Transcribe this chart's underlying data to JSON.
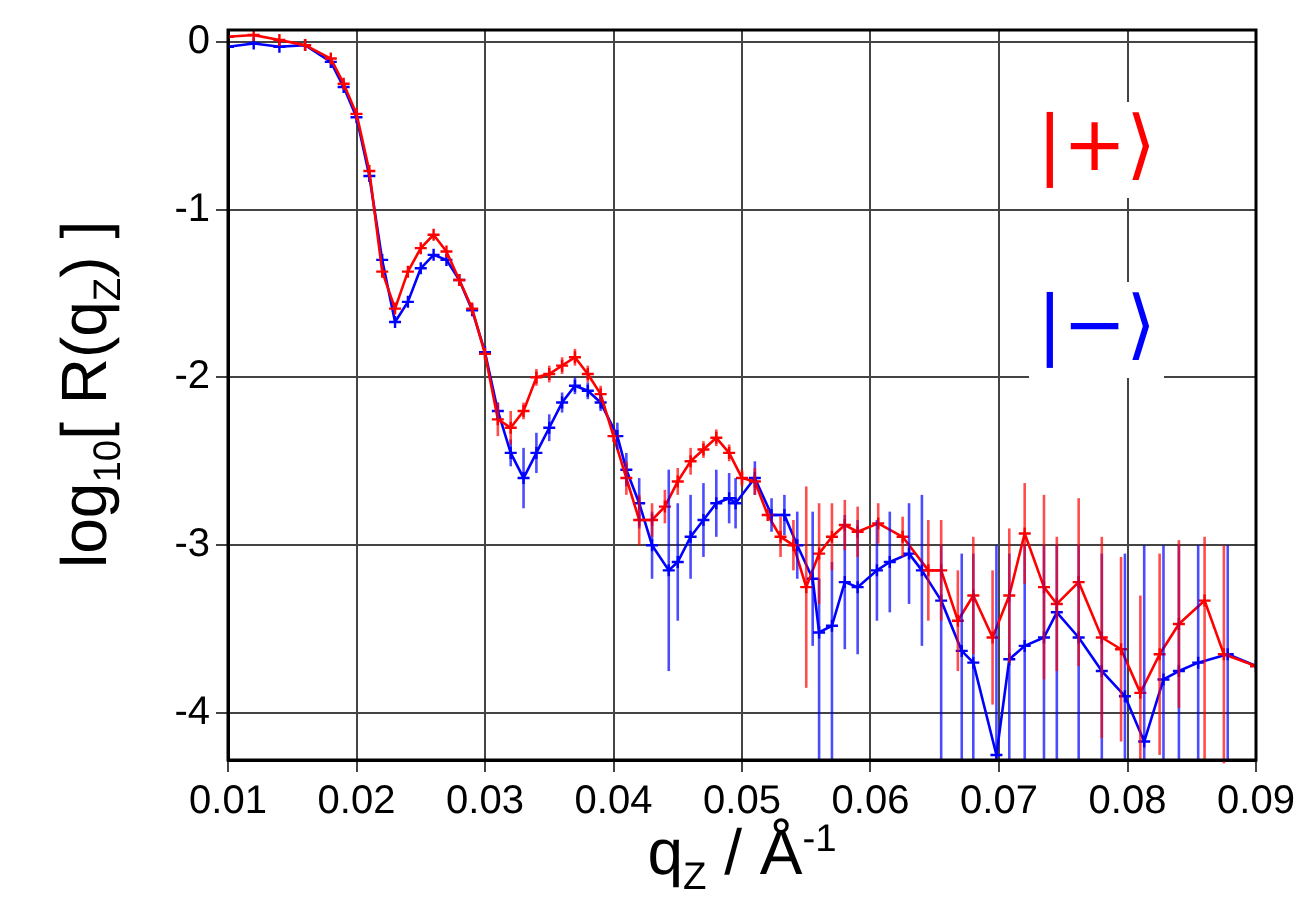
{
  "chart_data": {
    "type": "line",
    "xlabel": "q$_{Z}$ / Å$^{-1}$",
    "ylabel": "log$_{10}$[ R(q$_{Z}$) ]",
    "xlim": [
      0.01,
      0.09
    ],
    "xticks": [
      0.01,
      0.02,
      0.03,
      0.04,
      0.05,
      0.06,
      0.07,
      0.08,
      0.09
    ],
    "ylim": [
      -4.28,
      0.07
    ],
    "yticks": [
      0,
      -1,
      -2,
      -3,
      -4
    ],
    "grid": true,
    "legend": "top right",
    "marker": "cross",
    "line_style": "solid",
    "series": [
      {
        "name": "|+⟩",
        "color": "#ff0000",
        "x": [
          0.01,
          0.012,
          0.014,
          0.016,
          0.018,
          0.019,
          0.02,
          0.021,
          0.022,
          0.023,
          0.024,
          0.025,
          0.026,
          0.027,
          0.028,
          0.029,
          0.03,
          0.031,
          0.032,
          0.033,
          0.034,
          0.035,
          0.036,
          0.037,
          0.038,
          0.039,
          0.04,
          0.041,
          0.042,
          0.043,
          0.044,
          0.045,
          0.046,
          0.047,
          0.048,
          0.049,
          0.05,
          0.051,
          0.052,
          0.053,
          0.054,
          0.055,
          0.056,
          0.057,
          0.058,
          0.059,
          0.0606,
          0.0625,
          0.0645,
          0.0655,
          0.0668,
          0.068,
          0.0695,
          0.0708,
          0.072,
          0.0735,
          0.0745,
          0.0762,
          0.078,
          0.0795,
          0.081,
          0.0825,
          0.084,
          0.086,
          0.0875,
          0.09
        ],
        "values": [
          0.03,
          0.04,
          0.01,
          -0.02,
          -0.1,
          -0.25,
          -0.43,
          -0.77,
          -1.37,
          -1.59,
          -1.37,
          -1.23,
          -1.15,
          -1.25,
          -1.42,
          -1.59,
          -1.86,
          -2.25,
          -2.3,
          -2.2,
          -2.0,
          -1.98,
          -1.93,
          -1.88,
          -1.98,
          -2.1,
          -2.35,
          -2.6,
          -2.85,
          -2.85,
          -2.77,
          -2.62,
          -2.5,
          -2.43,
          -2.36,
          -2.45,
          -2.6,
          -2.62,
          -2.82,
          -2.95,
          -3.0,
          -3.25,
          -3.05,
          -2.95,
          -2.88,
          -2.92,
          -2.87,
          -2.95,
          -3.15,
          -3.15,
          -3.45,
          -3.3,
          -3.55,
          -3.3,
          -2.93,
          -3.25,
          -3.35,
          -3.22,
          -3.55,
          -3.62,
          -3.88,
          -3.65,
          -3.47,
          -3.33,
          -3.65,
          -3.72
        ],
        "errors": [
          null,
          null,
          null,
          null,
          null,
          null,
          null,
          null,
          null,
          null,
          null,
          null,
          null,
          null,
          null,
          null,
          null,
          0.1,
          0.1,
          0.05,
          0.05,
          0.05,
          0.05,
          0.05,
          0.05,
          0.05,
          null,
          0.1,
          0.15,
          0.1,
          0.1,
          0.08,
          0.08,
          0.05,
          0.05,
          0.05,
          0.05,
          0.08,
          null,
          0.12,
          0.15,
          0.6,
          0.3,
          0.2,
          0.15,
          0.15,
          0.12,
          0.12,
          0.3,
          0.3,
          0.3,
          0.35,
          0.4,
          0.4,
          0.3,
          0.55,
          0.4,
          0.5,
          0.6,
          0.55,
          [
            -4.28,
            -3.3
          ],
          0.6,
          0.5,
          [
            -4.28,
            -2.95
          ],
          0.65,
          null
        ]
      },
      {
        "name": "|−⟩",
        "color": "#0000ff",
        "x": [
          0.01,
          0.012,
          0.014,
          0.016,
          0.018,
          0.019,
          0.02,
          0.021,
          0.022,
          0.023,
          0.024,
          0.025,
          0.026,
          0.027,
          0.028,
          0.029,
          0.03,
          0.031,
          0.032,
          0.033,
          0.034,
          0.035,
          0.036,
          0.037,
          0.038,
          0.039,
          0.0403,
          0.041,
          0.042,
          0.043,
          0.0443,
          0.045,
          0.046,
          0.047,
          0.048,
          0.049,
          0.0495,
          0.051,
          0.0523,
          0.0533,
          0.0543,
          0.0555,
          0.056,
          0.057,
          0.058,
          0.059,
          0.0605,
          0.0615,
          0.063,
          0.064,
          0.0655,
          0.0671,
          0.068,
          0.0698,
          0.0708,
          0.072,
          0.0735,
          0.0745,
          0.0762,
          0.078,
          0.0798,
          0.0813,
          0.0828,
          0.084,
          0.0855,
          0.0878,
          0.09
        ],
        "values": [
          -0.03,
          -0.01,
          -0.03,
          -0.02,
          -0.12,
          -0.27,
          -0.45,
          -0.8,
          -1.3,
          -1.67,
          -1.55,
          -1.35,
          -1.27,
          -1.3,
          -1.42,
          -1.6,
          -1.85,
          -2.2,
          -2.45,
          -2.6,
          -2.45,
          -2.3,
          -2.15,
          -2.05,
          -2.08,
          -2.15,
          -2.35,
          -2.55,
          -2.75,
          -3.0,
          -3.15,
          -3.1,
          -2.95,
          -2.85,
          -2.75,
          -2.72,
          -2.75,
          -2.6,
          -2.82,
          -2.82,
          -3.0,
          -3.2,
          -3.52,
          -3.48,
          -3.22,
          -3.25,
          -3.15,
          -3.1,
          -3.05,
          -3.15,
          -3.33,
          -3.63,
          -3.7,
          -4.25,
          -3.68,
          -3.6,
          -3.55,
          -3.4,
          -3.55,
          -3.75,
          -3.9,
          -4.17,
          -3.8,
          -3.75,
          -3.7,
          -3.65,
          -3.72
        ],
        "errors": [
          null,
          null,
          null,
          null,
          null,
          null,
          null,
          null,
          null,
          null,
          null,
          null,
          null,
          null,
          null,
          null,
          null,
          0.05,
          0.08,
          0.18,
          0.12,
          0.08,
          0.06,
          0.05,
          0.05,
          0.05,
          0.08,
          0.1,
          0.15,
          0.2,
          0.6,
          0.35,
          0.25,
          0.22,
          0.2,
          0.15,
          0.15,
          0.1,
          0.1,
          0.12,
          0.2,
          0.4,
          [
            -4.28,
            -3.2
          ],
          [
            -4.28,
            -3.1
          ],
          0.4,
          0.4,
          0.3,
          0.3,
          0.3,
          0.45,
          [
            -4.28,
            -3.0
          ],
          [
            -4.28,
            -3.05
          ],
          [
            -4.28,
            -3.05
          ],
          [
            -4.28,
            -3.0
          ],
          [
            -4.28,
            -3.05
          ],
          [
            -4.28,
            -3.0
          ],
          [
            -4.28,
            -3.0
          ],
          [
            -4.28,
            -3.0
          ],
          [
            -4.28,
            -3.0
          ],
          [
            -4.28,
            -3.05
          ],
          [
            -4.28,
            -3.05
          ],
          [
            -4.28,
            -3.0
          ],
          [
            -4.28,
            -3.0
          ],
          [
            -4.28,
            -3.0
          ],
          [
            -4.28,
            -3.0
          ],
          [
            -4.28,
            -3.0
          ],
          null
        ]
      }
    ]
  }
}
